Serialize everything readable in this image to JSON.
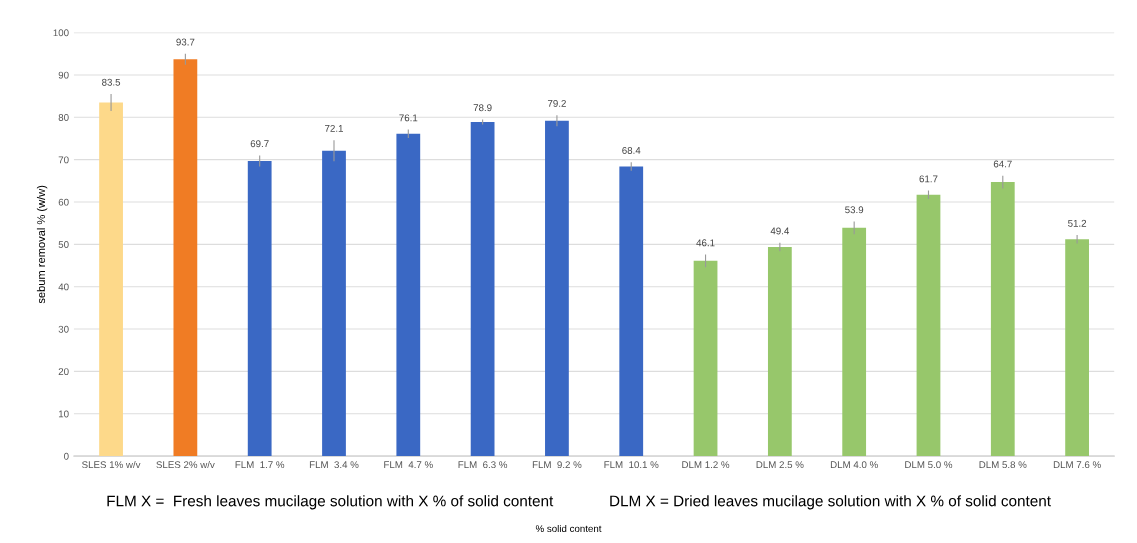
{
  "chart_data": {
    "type": "bar",
    "categories": [
      "SLES 1% w/v",
      "SLES 2% w/v",
      "FLM  1.7 %",
      "FLM  3.4 %",
      "FLM  4.7 %",
      "FLM  6.3 %",
      "FLM  9.2 %",
      "FLM  10.1 %",
      "DLM 1.2 %",
      "DLM 2.5 %",
      "DLM 4.0 %",
      "DLM 5.0 %",
      "DLM 5.8 %",
      "DLM 7.6 %"
    ],
    "values": [
      83.5,
      93.7,
      69.7,
      72.1,
      76.1,
      78.9,
      79.2,
      68.4,
      46.1,
      49.4,
      53.9,
      61.7,
      64.7,
      51.2
    ],
    "errors": [
      2,
      1.3,
      1.3,
      2.5,
      1,
      0.6,
      1.3,
      1,
      1.5,
      1,
      1.5,
      1,
      1.5,
      1
    ],
    "colors": [
      "#fdd98a",
      "#f07c24",
      "#3a68c4",
      "#3a68c4",
      "#3a68c4",
      "#3a68c4",
      "#3a68c4",
      "#3a68c4",
      "#97c76b",
      "#97c76b",
      "#97c76b",
      "#97c76b",
      "#97c76b",
      "#97c76b"
    ],
    "ylim": [
      0,
      100
    ],
    "yticks": [
      0,
      10,
      20,
      30,
      40,
      50,
      60,
      70,
      80,
      90,
      100
    ],
    "ylabel": "sebum removal % (w/w)",
    "annotations": [
      "FLM X =  Fresh leaves mucilage solution with X % of solid content",
      "DLM X = Dried leaves mucilage solution with X % of solid content",
      "% solid content"
    ],
    "data_labels": true,
    "grid": "y"
  }
}
